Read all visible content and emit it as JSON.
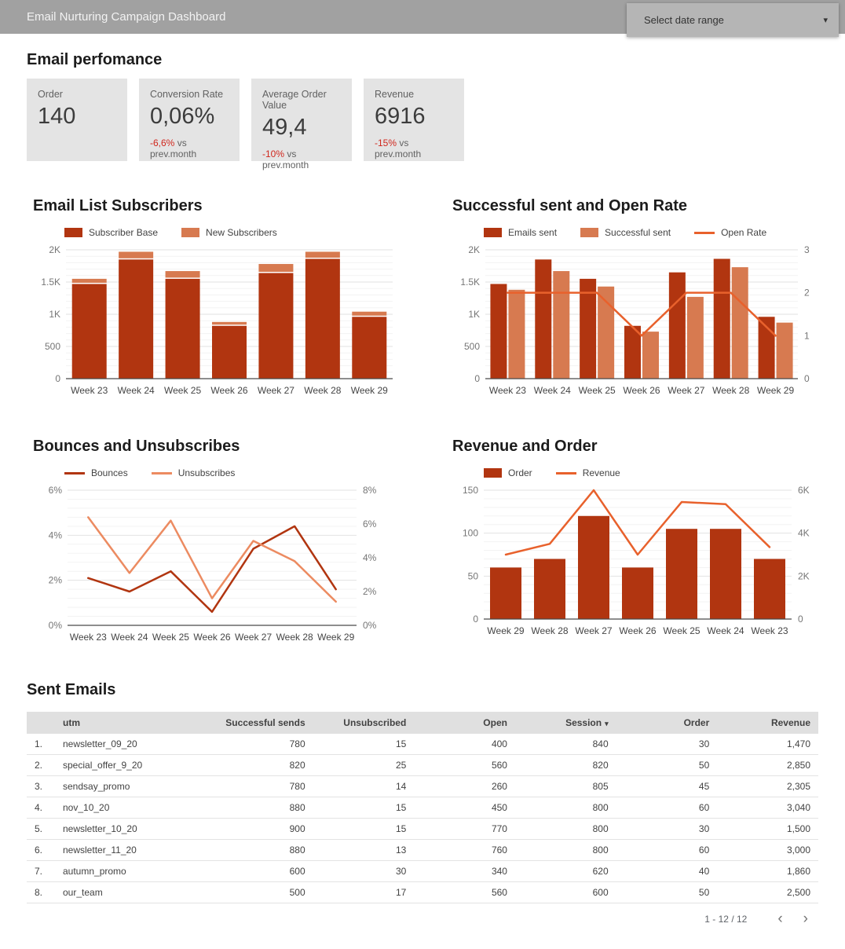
{
  "header": {
    "title": "Email Nurturing Campaign Dashboard",
    "date_range_label": "Select date range",
    "caret_icon": "▾"
  },
  "colors": {
    "dark_red": "#b13510",
    "light_orange": "#d77a50",
    "bright_orange": "#e8612c",
    "pale_orange_line": "#ec8b61",
    "negative_red": "#d0271d",
    "header_gray": "#a1a1a1",
    "card_gray": "#e4e4e4"
  },
  "performance": {
    "section_title": "Email perfomance",
    "cards": [
      {
        "label": "Order",
        "value": "140",
        "change": "",
        "change_suffix": ""
      },
      {
        "label": "Conversion Rate",
        "value": "0,06%",
        "change": "-6,6%",
        "change_suffix": " vs prev.month"
      },
      {
        "label": "Average Order Value",
        "value": "49,4",
        "change": "-10%",
        "change_suffix": " vs prev.month"
      },
      {
        "label": "Revenue",
        "value": "6916",
        "change": "-15%",
        "change_suffix": " vs prev.month"
      }
    ]
  },
  "chart_data": [
    {
      "name": "email-list-subscribers",
      "title": "Email List Subscribers",
      "type": "bar",
      "stacked": true,
      "categories": [
        "Week 23",
        "Week 24",
        "Week 25",
        "Week 26",
        "Week 27",
        "Week 28",
        "Week 29"
      ],
      "series": [
        {
          "name": "Subscriber Base",
          "color": "#b13510",
          "values": [
            1470,
            1850,
            1550,
            820,
            1640,
            1860,
            960
          ]
        },
        {
          "name": "New Subscribers",
          "color": "#d77a50",
          "values": [
            80,
            120,
            120,
            60,
            140,
            110,
            80
          ]
        }
      ],
      "lines": [],
      "left_axis": {
        "min": 0,
        "max": 2000,
        "ticks": [
          0,
          500,
          1000,
          1500,
          2000
        ],
        "tick_labels": [
          "0",
          "500",
          "1K",
          "1.5K",
          "2K"
        ]
      },
      "legend_position": "top",
      "grid": true
    },
    {
      "name": "successful-sent-open-rate",
      "title": "Successful sent and Open Rate",
      "type": "bar",
      "stacked": false,
      "categories": [
        "Week 23",
        "Week 24",
        "Week 25",
        "Week 26",
        "Week 27",
        "Week 28",
        "Week 29"
      ],
      "series": [
        {
          "name": "Emails sent",
          "color": "#b13510",
          "values": [
            1470,
            1850,
            1550,
            820,
            1650,
            1860,
            960
          ]
        },
        {
          "name": "Successful sent",
          "color": "#d77a50",
          "values": [
            1380,
            1670,
            1430,
            730,
            1270,
            1730,
            870
          ]
        }
      ],
      "lines": [
        {
          "name": "Open Rate",
          "color": "#e8612c",
          "axis": "right",
          "values": [
            2,
            2,
            2,
            1,
            2,
            2,
            1
          ]
        }
      ],
      "left_axis": {
        "min": 0,
        "max": 2000,
        "ticks": [
          0,
          500,
          1000,
          1500,
          2000
        ],
        "tick_labels": [
          "0",
          "500",
          "1K",
          "1.5K",
          "2K"
        ]
      },
      "right_axis": {
        "min": 0,
        "max": 3,
        "ticks": [
          0,
          1,
          2,
          3
        ],
        "tick_labels": [
          "0",
          "1",
          "2",
          "3"
        ]
      },
      "legend_position": "top",
      "grid": true
    },
    {
      "name": "bounces-unsubscribes",
      "title": "Bounces and Unsubscribes",
      "type": "line",
      "categories": [
        "Week 23",
        "Week 24",
        "Week 25",
        "Week 26",
        "Week 27",
        "Week 28",
        "Week 29"
      ],
      "series": [],
      "lines": [
        {
          "name": "Bounces",
          "color": "#b13510",
          "axis": "left",
          "values": [
            2.1,
            1.5,
            2.4,
            0.6,
            3.4,
            4.4,
            1.6
          ]
        },
        {
          "name": "Unsubscribes",
          "color": "#ec8b61",
          "axis": "right",
          "values": [
            6.4,
            3.1,
            6.2,
            1.6,
            5.0,
            3.8,
            1.4
          ]
        }
      ],
      "left_axis": {
        "min": 0,
        "max": 6,
        "ticks": [
          0,
          2,
          4,
          6
        ],
        "tick_labels": [
          "0%",
          "2%",
          "4%",
          "6%"
        ]
      },
      "right_axis": {
        "min": 0,
        "max": 8,
        "ticks": [
          0,
          2,
          4,
          6,
          8
        ],
        "tick_labels": [
          "0%",
          "2%",
          "4%",
          "6%",
          "8%"
        ]
      },
      "legend_position": "top",
      "grid": true
    },
    {
      "name": "revenue-and-order",
      "title": "Revenue and Order",
      "type": "bar",
      "stacked": false,
      "categories": [
        "Week 29",
        "Week 28",
        "Week 27",
        "Week 26",
        "Week 25",
        "Week 24",
        "Week 23"
      ],
      "series": [
        {
          "name": "Order",
          "color": "#b13510",
          "values": [
            60,
            70,
            120,
            60,
            105,
            105,
            70
          ]
        }
      ],
      "lines": [
        {
          "name": "Revenue",
          "color": "#e8612c",
          "axis": "right",
          "values": [
            3000,
            3500,
            6000,
            3000,
            5450,
            5350,
            3350
          ]
        }
      ],
      "left_axis": {
        "min": 0,
        "max": 150,
        "ticks": [
          0,
          50,
          100,
          150
        ],
        "tick_labels": [
          "0",
          "50",
          "100",
          "150"
        ]
      },
      "right_axis": {
        "min": 0,
        "max": 6000,
        "ticks": [
          0,
          2000,
          4000,
          6000
        ],
        "tick_labels": [
          "0",
          "2K",
          "4K",
          "6K"
        ]
      },
      "legend_position": "top",
      "grid": true
    }
  ],
  "table": {
    "section_title": "Sent Emails",
    "columns": [
      "utm",
      "Successful sends",
      "Unsubscribed",
      "Open",
      "Session",
      "Order",
      "Revenue"
    ],
    "sort_column": "Session",
    "sort_caret": "▾",
    "rows": [
      [
        "newsletter_09_20",
        "780",
        "15",
        "400",
        "840",
        "30",
        "1,470"
      ],
      [
        "special_offer_9_20",
        "820",
        "25",
        "560",
        "820",
        "50",
        "2,850"
      ],
      [
        "sendsay_promo",
        "780",
        "14",
        "260",
        "805",
        "45",
        "2,305"
      ],
      [
        "nov_10_20",
        "880",
        "15",
        "450",
        "800",
        "60",
        "3,040"
      ],
      [
        "newsletter_10_20",
        "900",
        "15",
        "770",
        "800",
        "30",
        "1,500"
      ],
      [
        "newsletter_11_20",
        "880",
        "13",
        "760",
        "800",
        "60",
        "3,000"
      ],
      [
        "autumn_promo",
        "600",
        "30",
        "340",
        "620",
        "40",
        "1,860"
      ],
      [
        "our_team",
        "500",
        "17",
        "560",
        "600",
        "50",
        "2,500"
      ]
    ],
    "pagination": "1 - 12 / 12",
    "prev_icon": "‹",
    "next_icon": "›"
  }
}
